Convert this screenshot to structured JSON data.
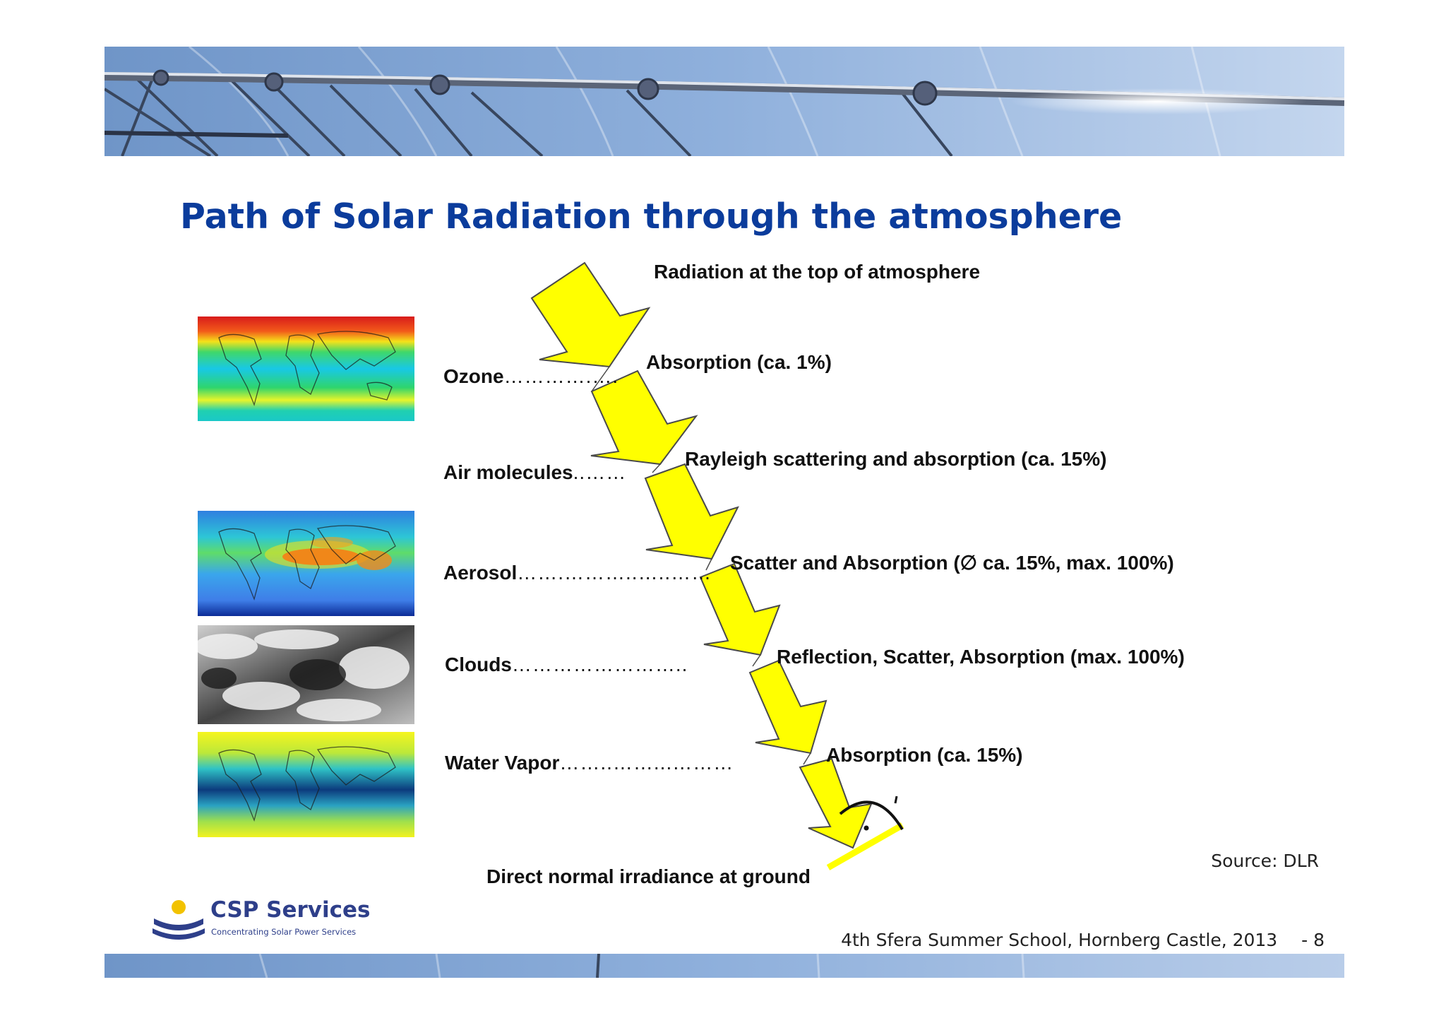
{
  "slide": {
    "title": "Path of Solar Radiation through the atmosphere"
  },
  "top_label": "Radiation at the top of atmosphere",
  "bottom_label": "Direct normal irradiance at ground",
  "layers": [
    {
      "name": "Ozone",
      "dots": "………….….",
      "effect": "Absorption (ca. 1%)"
    },
    {
      "name": "Air molecules",
      "dots": "..……",
      "effect": "Rayleigh scattering and absorption (ca. 15%)"
    },
    {
      "name": "Aerosol",
      "dots": "…….………..…..……",
      "effect": "Scatter and Absorption (∅ ca. 15%, max. 100%)"
    },
    {
      "name": "Clouds",
      "dots": "……………………..",
      "effect": "Reflection, Scatter, Absorption (max. 100%)"
    },
    {
      "name": "Water Vapor",
      "dots": "……..……...………",
      "effect": "Absorption (ca. 15%)"
    }
  ],
  "maps": [
    "ozone-map",
    "aerosol-map",
    "clouds-map",
    "water-vapor-map"
  ],
  "colors": {
    "title": "#0b3c9c",
    "arrow_fill": "#ffff00",
    "arrow_stroke": "#4a4a4a",
    "logo": "#2e3f8a",
    "logo_sun": "#f2c200"
  },
  "source": "Source: DLR",
  "footer": {
    "event": "4th Sfera Summer School, Hornberg Castle, 2013",
    "page": "- 8"
  },
  "logo": {
    "name": "CSP Services",
    "tagline": "Concentrating Solar Power Services"
  }
}
